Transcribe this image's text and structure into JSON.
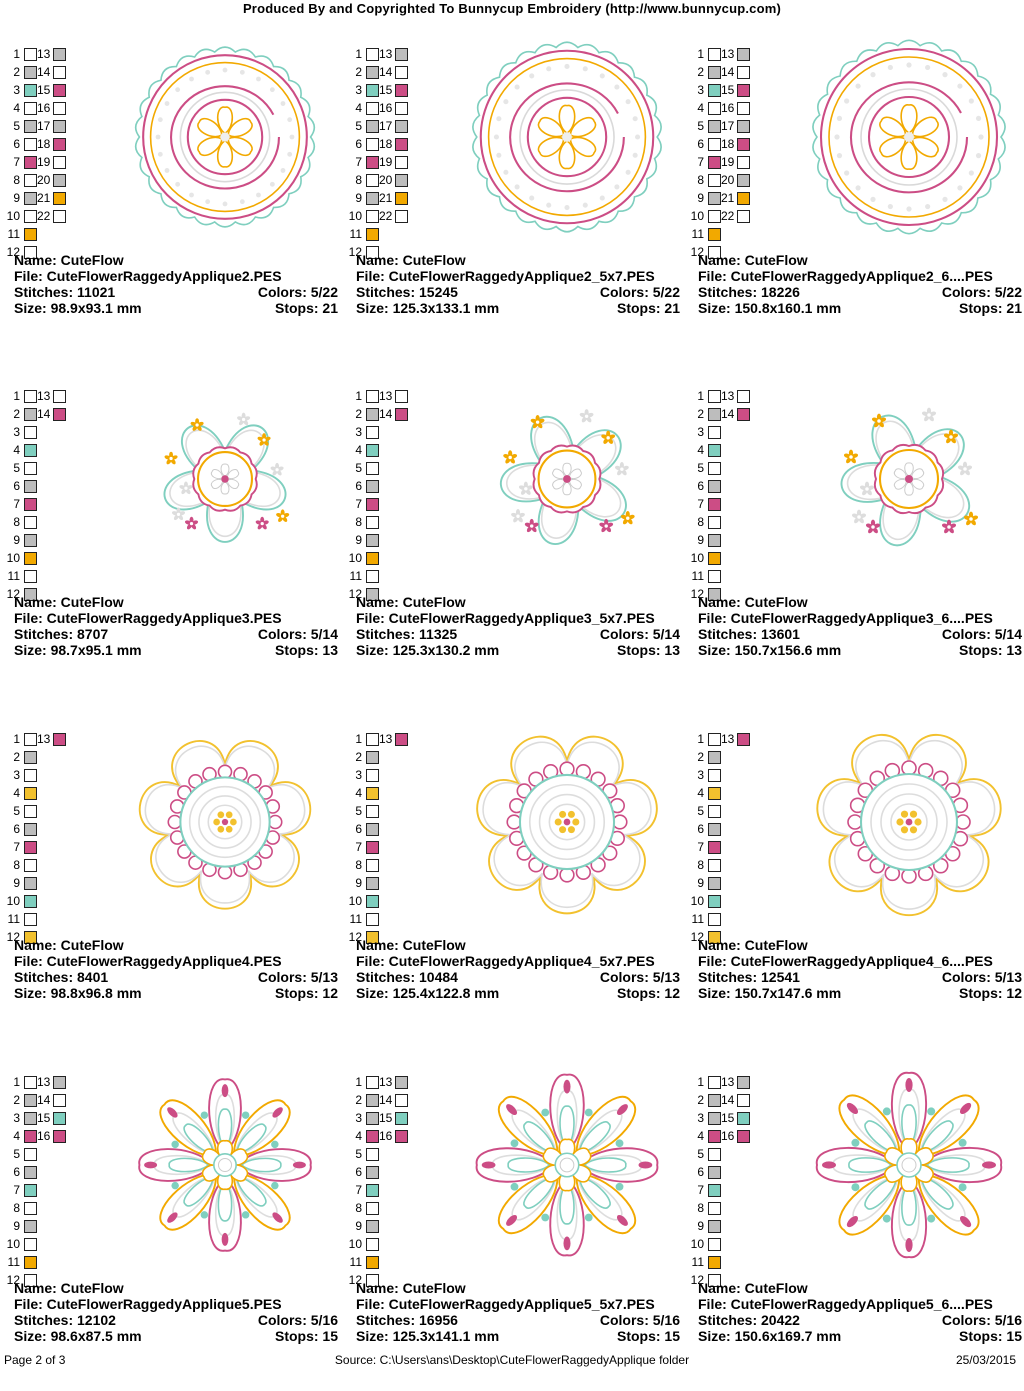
{
  "header": "Produced By and Copyrighted To Bunnycup Embroidery (http://www.bunnycup.com)",
  "footer": {
    "page": "Page 2 of 3",
    "source": "Source: C:\\Users\\ans\\Desktop\\CuteFlowerRaggedyApplique folder",
    "date": "25/03/2015"
  },
  "colors": {
    "white": "#ffffff",
    "gray": "#bdbdbd",
    "mint": "#7fcfbf",
    "pink": "#cc4d85",
    "gold": "#f2a900",
    "yellow": "#f2c12e"
  },
  "rows": [
    {
      "design_motif": "round-scalloped-flower",
      "swatches": {
        "col1": [
          "white",
          "gray",
          "mint",
          "white",
          "gray",
          "white",
          "pink",
          "white",
          "gray",
          "white",
          "gold",
          "white"
        ],
        "col2": [
          "gray",
          "white",
          "pink",
          "white",
          "gray",
          "pink",
          "white",
          "gray",
          "gold",
          "white"
        ]
      },
      "designs": [
        {
          "name": "Name: CuteFlow",
          "file": "File: CuteFlowerRaggedyApplique2.PES",
          "stitches": "Stitches: 11021",
          "colors": "Colors: 5/22",
          "size": "Size: 98.9x93.1 mm",
          "stops": "Stops: 21"
        },
        {
          "name": "Name: CuteFlow",
          "file": "File: CuteFlowerRaggedyApplique2_5x7.PES",
          "stitches": "Stitches: 15245",
          "colors": "Colors: 5/22",
          "size": "Size: 125.3x133.1 mm",
          "stops": "Stops: 21"
        },
        {
          "name": "Name: CuteFlow",
          "file": "File: CuteFlowerRaggedyApplique2_6....PES",
          "stitches": "Stitches: 18226",
          "colors": "Colors: 5/22",
          "size": "Size: 150.8x160.1 mm",
          "stops": "Stops: 21"
        }
      ]
    },
    {
      "design_motif": "five-petal-flower",
      "swatches": {
        "col1": [
          "white",
          "gray",
          "white",
          "mint",
          "white",
          "gray",
          "pink",
          "white",
          "gray",
          "gold",
          "white",
          "gray"
        ],
        "col2": [
          "white",
          "pink"
        ]
      },
      "designs": [
        {
          "name": "Name: CuteFlow",
          "file": "File: CuteFlowerRaggedyApplique3.PES",
          "stitches": "Stitches: 8707",
          "colors": "Colors: 5/14",
          "size": "Size: 98.7x95.1 mm",
          "stops": "Stops: 13"
        },
        {
          "name": "Name: CuteFlow",
          "file": "File: CuteFlowerRaggedyApplique3_5x7.PES",
          "stitches": "Stitches: 11325",
          "colors": "Colors: 5/14",
          "size": "Size: 125.3x130.2 mm",
          "stops": "Stops: 13"
        },
        {
          "name": "Name: CuteFlow",
          "file": "File: CuteFlowerRaggedyApplique3_6....PES",
          "stitches": "Stitches: 13601",
          "colors": "Colors: 5/14",
          "size": "Size: 150.7x156.6 mm",
          "stops": "Stops: 13"
        }
      ]
    },
    {
      "design_motif": "seven-petal-flower",
      "swatches": {
        "col1": [
          "white",
          "gray",
          "white",
          "yellow",
          "white",
          "gray",
          "pink",
          "white",
          "gray",
          "mint",
          "white",
          "yellow"
        ],
        "col2": [
          "pink"
        ]
      },
      "designs": [
        {
          "name": "Name: CuteFlow",
          "file": "File: CuteFlowerRaggedyApplique4.PES",
          "stitches": "Stitches: 8401",
          "colors": "Colors: 5/13",
          "size": "Size: 98.8x96.8 mm",
          "stops": "Stops: 12"
        },
        {
          "name": "Name: CuteFlow",
          "file": "File: CuteFlowerRaggedyApplique4_5x7.PES",
          "stitches": "Stitches: 10484",
          "colors": "Colors: 5/13",
          "size": "Size: 125.4x122.8 mm",
          "stops": "Stops: 12"
        },
        {
          "name": "Name: CuteFlow",
          "file": "File: CuteFlowerRaggedyApplique4_6....PES",
          "stitches": "Stitches: 12541",
          "colors": "Colors: 5/13",
          "size": "Size: 150.7x147.6 mm",
          "stops": "Stops: 12"
        }
      ]
    },
    {
      "design_motif": "eight-petal-flower",
      "swatches": {
        "col1": [
          "white",
          "gray",
          "gray",
          "pink",
          "white",
          "gray",
          "mint",
          "white",
          "gray",
          "white",
          "gold",
          "white"
        ],
        "col2": [
          "gray",
          "white",
          "mint",
          "pink"
        ]
      },
      "designs": [
        {
          "name": "Name: CuteFlow",
          "file": "File: CuteFlowerRaggedyApplique5.PES",
          "stitches": "Stitches: 12102",
          "colors": "Colors: 5/16",
          "size": "Size: 98.6x87.5 mm",
          "stops": "Stops: 15"
        },
        {
          "name": "Name: CuteFlow",
          "file": "File: CuteFlowerRaggedyApplique5_5x7.PES",
          "stitches": "Stitches: 16956",
          "colors": "Colors: 5/16",
          "size": "Size: 125.3x141.1 mm",
          "stops": "Stops: 15"
        },
        {
          "name": "Name: CuteFlow",
          "file": "File: CuteFlowerRaggedyApplique5_6....PES",
          "stitches": "Stitches: 20422",
          "colors": "Colors: 5/16",
          "size": "Size: 150.6x169.7 mm",
          "stops": "Stops: 15"
        }
      ]
    }
  ]
}
